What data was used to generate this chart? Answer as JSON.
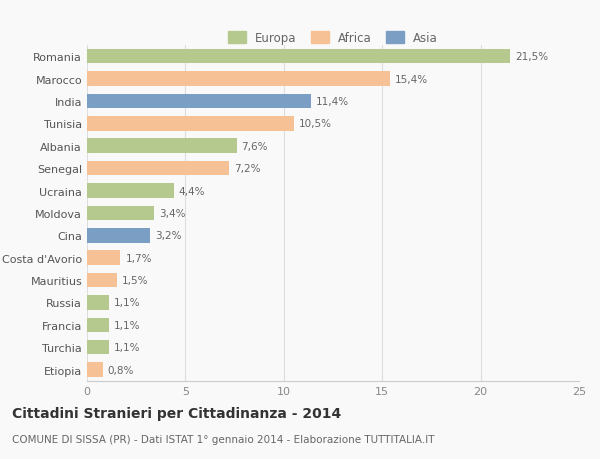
{
  "countries": [
    "Romania",
    "Marocco",
    "India",
    "Tunisia",
    "Albania",
    "Senegal",
    "Ucraina",
    "Moldova",
    "Cina",
    "Costa d'Avorio",
    "Mauritius",
    "Russia",
    "Francia",
    "Turchia",
    "Etiopia"
  ],
  "values": [
    21.5,
    15.4,
    11.4,
    10.5,
    7.6,
    7.2,
    4.4,
    3.4,
    3.2,
    1.7,
    1.5,
    1.1,
    1.1,
    1.1,
    0.8
  ],
  "labels": [
    "21,5%",
    "15,4%",
    "11,4%",
    "10,5%",
    "7,6%",
    "7,2%",
    "4,4%",
    "3,4%",
    "3,2%",
    "1,7%",
    "1,5%",
    "1,1%",
    "1,1%",
    "1,1%",
    "0,8%"
  ],
  "continents": [
    "Europa",
    "Africa",
    "Asia",
    "Africa",
    "Europa",
    "Africa",
    "Europa",
    "Europa",
    "Asia",
    "Africa",
    "Africa",
    "Europa",
    "Europa",
    "Europa",
    "Africa"
  ],
  "colors": {
    "Europa": "#b5c98e",
    "Africa": "#f5c195",
    "Asia": "#7b9ec4"
  },
  "legend_order": [
    "Europa",
    "Africa",
    "Asia"
  ],
  "xlim": [
    0,
    25
  ],
  "xticks": [
    0,
    5,
    10,
    15,
    20,
    25
  ],
  "title": "Cittadini Stranieri per Cittadinanza - 2014",
  "subtitle": "COMUNE DI SISSA (PR) - Dati ISTAT 1° gennaio 2014 - Elaborazione TUTTITALIA.IT",
  "background_color": "#f9f9f9",
  "title_fontsize": 10,
  "subtitle_fontsize": 7.5,
  "label_fontsize": 7.5,
  "ytick_fontsize": 8,
  "xtick_fontsize": 8,
  "legend_fontsize": 8.5
}
